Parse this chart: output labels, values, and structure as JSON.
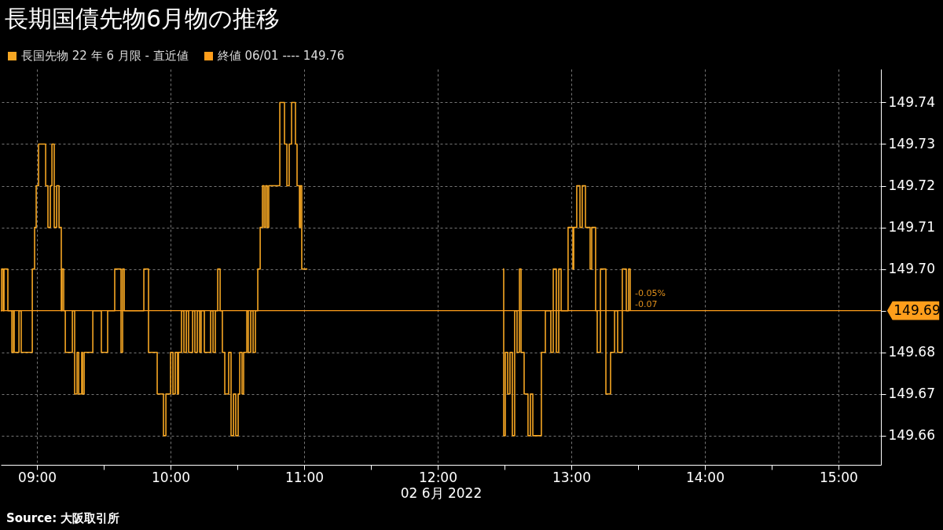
{
  "chart_data": {
    "type": "step",
    "title": "長期国債先物6月物の推移",
    "xlabel": "02 6月 2022",
    "x": [
      8.729,
      8.735,
      8.747,
      8.753,
      8.782,
      8.812,
      8.824,
      8.829,
      8.865,
      8.882,
      8.965,
      8.982,
      8.994,
      9.012,
      9.065,
      9.082,
      9.1,
      9.112,
      9.129,
      9.147,
      9.165,
      9.182,
      9.188,
      9.2,
      9.212,
      9.265,
      9.282,
      9.3,
      9.312,
      9.335,
      9.341,
      9.353,
      9.418,
      9.482,
      9.529,
      9.582,
      9.629,
      9.641,
      9.653,
      9.8,
      9.835,
      9.9,
      9.947,
      9.965,
      10.0,
      10.018,
      10.035,
      10.053,
      10.059,
      10.082,
      10.1,
      10.118,
      10.135,
      10.165,
      10.182,
      10.2,
      10.218,
      10.229,
      10.253,
      10.3,
      10.318,
      10.335,
      10.353,
      10.371,
      10.388,
      10.406,
      10.435,
      10.453,
      10.471,
      10.488,
      10.506,
      10.518,
      10.535,
      10.547,
      10.571,
      10.582,
      10.6,
      10.618,
      10.635,
      10.653,
      10.671,
      10.688,
      10.7,
      10.712,
      10.724,
      10.735,
      10.818,
      10.853,
      10.871,
      10.888,
      10.906,
      10.935,
      10.947,
      10.965,
      10.971,
      10.982,
      11.024,
      11.029,
      12.488,
      12.494,
      12.506,
      12.524,
      12.541,
      12.559,
      12.576,
      12.594,
      12.612,
      12.624,
      12.647,
      12.676,
      12.694,
      12.712,
      12.776,
      12.806,
      12.847,
      12.865,
      12.888,
      12.906,
      12.924,
      12.976,
      13.012,
      13.018,
      13.041,
      13.065,
      13.082,
      13.106,
      13.141,
      13.153,
      13.182,
      13.194,
      13.218,
      13.259,
      13.294,
      13.324,
      13.347,
      13.382,
      13.412,
      13.429,
      13.441
    ],
    "series": [
      {
        "name": "長国先物 22 年 6 月限 - 直近値",
        "color": "#f5a623",
        "values": [
          149.69,
          149.7,
          149.69,
          149.7,
          149.69,
          149.68,
          149.69,
          149.68,
          149.69,
          149.68,
          149.7,
          149.71,
          149.72,
          149.73,
          149.72,
          149.71,
          149.72,
          149.73,
          149.71,
          149.72,
          149.71,
          149.69,
          149.7,
          149.69,
          149.68,
          149.69,
          149.67,
          149.68,
          149.67,
          149.68,
          149.67,
          149.68,
          149.69,
          149.68,
          149.69,
          149.7,
          149.68,
          149.7,
          149.69,
          149.7,
          149.68,
          149.67,
          149.66,
          149.67,
          149.68,
          149.67,
          149.68,
          149.67,
          149.68,
          149.69,
          149.68,
          149.69,
          149.68,
          149.69,
          149.68,
          149.69,
          149.68,
          149.69,
          149.68,
          149.69,
          149.68,
          149.69,
          149.7,
          149.69,
          149.68,
          149.67,
          149.68,
          149.66,
          149.67,
          149.66,
          149.67,
          149.68,
          149.67,
          149.68,
          149.69,
          149.68,
          149.69,
          149.68,
          149.69,
          149.7,
          149.71,
          149.72,
          149.71,
          149.72,
          149.71,
          149.72,
          149.74,
          149.73,
          149.72,
          149.73,
          149.74,
          149.73,
          149.72,
          149.71,
          149.72,
          149.7,
          149.7,
          null,
          149.7,
          149.66,
          149.68,
          149.67,
          149.68,
          149.66,
          149.69,
          149.68,
          149.7,
          149.68,
          149.67,
          149.66,
          149.67,
          149.66,
          149.68,
          149.69,
          149.68,
          149.7,
          149.68,
          149.7,
          149.69,
          149.71,
          149.7,
          149.71,
          149.72,
          149.71,
          149.72,
          149.71,
          149.7,
          149.71,
          149.69,
          149.68,
          149.7,
          149.67,
          149.68,
          149.69,
          149.68,
          149.7,
          149.69,
          149.7,
          149.69
        ]
      }
    ],
    "xlim": [
      8.729,
      15.318
    ],
    "ylim": [
      149.653,
      149.748
    ],
    "xticks": [
      {
        "value": 9,
        "label": "09:00"
      },
      {
        "value": 9.5,
        "label": null
      },
      {
        "value": 10,
        "label": "10:00"
      },
      {
        "value": 10.5,
        "label": null
      },
      {
        "value": 11,
        "label": "11:00"
      },
      {
        "value": 11.5,
        "label": null
      },
      {
        "value": 12,
        "label": "12:00"
      },
      {
        "value": 12.5,
        "label": null
      },
      {
        "value": 13,
        "label": "13:00"
      },
      {
        "value": 13.5,
        "label": null
      },
      {
        "value": 14,
        "label": "14:00"
      },
      {
        "value": 14.5,
        "label": null
      },
      {
        "value": 15,
        "label": "15:00"
      }
    ],
    "yticks": [
      {
        "value": 149.66,
        "label": "149.66"
      },
      {
        "value": 149.67,
        "label": "149.67"
      },
      {
        "value": 149.68,
        "label": "149.68"
      },
      {
        "value": 149.69,
        "label": null
      },
      {
        "value": 149.7,
        "label": "149.70"
      },
      {
        "value": 149.71,
        "label": "149.71"
      },
      {
        "value": 149.72,
        "label": "149.72"
      },
      {
        "value": 149.73,
        "label": "149.73"
      },
      {
        "value": 149.74,
        "label": "149.74"
      }
    ],
    "grid": true,
    "legend": "top left",
    "ref_lines": [
      {
        "axis": "y",
        "value": 149.69,
        "label": "149.69",
        "color": "#ff9e1b"
      }
    ],
    "annotations": [
      "終値 06/01 ---- 149.76",
      "-0.05%",
      "-0.07",
      "Source: 大阪取引所"
    ]
  }
}
